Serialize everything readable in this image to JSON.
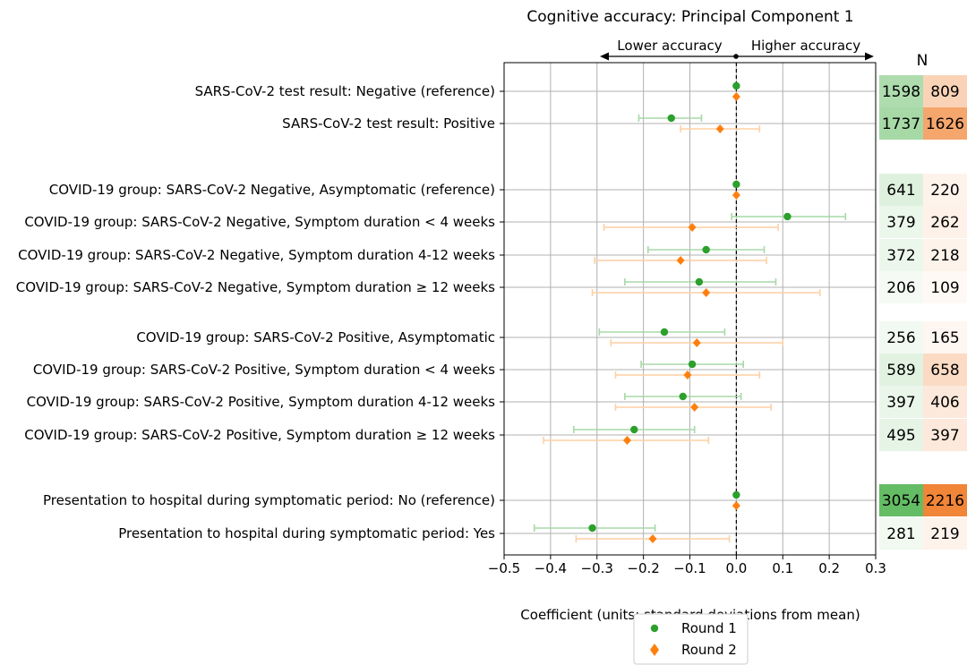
{
  "chart_data": {
    "type": "forest",
    "title": "Cognitive accuracy: Principal Component 1",
    "xlabel": "Coefficient (units: standard deviations from mean)",
    "xlim": [
      -0.5,
      0.3
    ],
    "xticks": [
      -0.5,
      -0.4,
      -0.3,
      -0.2,
      -0.1,
      0.0,
      0.1,
      0.2,
      0.3
    ],
    "xtick_labels": [
      "−0.5",
      "−0.4",
      "−0.3",
      "−0.2",
      "−0.1",
      "0.0",
      "0.1",
      "0.2",
      "0.3"
    ],
    "grid": true,
    "annotations": {
      "lower": "Lower accuracy",
      "higher": "Higher accuracy"
    },
    "n_header": "N",
    "legend": {
      "position": "bottom-center",
      "entries": [
        "Round 1",
        "Round 2"
      ]
    },
    "colors": {
      "round1": "#2ca02c",
      "round1_light": "#a8d8a8",
      "round2": "#ff7f0e",
      "round2_light": "#ffcfa3",
      "heat_green": "#5cb85c",
      "heat_orange": "#f07f2e"
    },
    "n_max": {
      "round1": 3054,
      "round2": 2216
    },
    "rows": [
      {
        "label": "SARS-CoV-2 test result: Negative (reference)",
        "r1": {
          "est": 0.0,
          "lo": 0.0,
          "hi": 0.0
        },
        "r2": {
          "est": 0.0,
          "lo": 0.0,
          "hi": 0.0
        },
        "n1": 1598,
        "n2": 809
      },
      {
        "label": "SARS-CoV-2 test result: Positive",
        "r1": {
          "est": -0.14,
          "lo": -0.21,
          "hi": -0.075
        },
        "r2": {
          "est": -0.035,
          "lo": -0.12,
          "hi": 0.05
        },
        "n1": 1737,
        "n2": 1626
      },
      {
        "label": "COVID-19 group: SARS-CoV-2 Negative, Asymptomatic (reference)",
        "r1": {
          "est": 0.0,
          "lo": 0.0,
          "hi": 0.0
        },
        "r2": {
          "est": 0.0,
          "lo": 0.0,
          "hi": 0.0
        },
        "n1": 641,
        "n2": 220
      },
      {
        "label": "COVID-19 group: SARS-CoV-2 Negative, Symptom duration < 4 weeks",
        "r1": {
          "est": 0.11,
          "lo": -0.01,
          "hi": 0.235
        },
        "r2": {
          "est": -0.095,
          "lo": -0.285,
          "hi": 0.09
        },
        "n1": 379,
        "n2": 262
      },
      {
        "label": "COVID-19 group: SARS-CoV-2 Negative, Symptom duration 4-12 weeks",
        "r1": {
          "est": -0.065,
          "lo": -0.19,
          "hi": 0.06
        },
        "r2": {
          "est": -0.12,
          "lo": -0.305,
          "hi": 0.065
        },
        "n1": 372,
        "n2": 218
      },
      {
        "label": "COVID-19 group: SARS-CoV-2 Negative, Symptom duration ≥ 12 weeks",
        "r1": {
          "est": -0.08,
          "lo": -0.24,
          "hi": 0.085
        },
        "r2": {
          "est": -0.065,
          "lo": -0.31,
          "hi": 0.18
        },
        "n1": 206,
        "n2": 109
      },
      {
        "label": "COVID-19 group: SARS-CoV-2 Positive, Asymptomatic",
        "r1": {
          "est": -0.155,
          "lo": -0.295,
          "hi": -0.025
        },
        "r2": {
          "est": -0.085,
          "lo": -0.27,
          "hi": 0.1
        },
        "n1": 256,
        "n2": 165
      },
      {
        "label": "COVID-19 group: SARS-CoV-2 Positive, Symptom duration < 4 weeks",
        "r1": {
          "est": -0.095,
          "lo": -0.205,
          "hi": 0.015
        },
        "r2": {
          "est": -0.105,
          "lo": -0.26,
          "hi": 0.05
        },
        "n1": 589,
        "n2": 658
      },
      {
        "label": "COVID-19 group: SARS-CoV-2 Positive, Symptom duration 4-12 weeks",
        "r1": {
          "est": -0.115,
          "lo": -0.24,
          "hi": 0.01
        },
        "r2": {
          "est": -0.09,
          "lo": -0.26,
          "hi": 0.075
        },
        "n1": 397,
        "n2": 406
      },
      {
        "label": "COVID-19 group: SARS-CoV-2 Positive, Symptom duration ≥ 12 weeks",
        "r1": {
          "est": -0.22,
          "lo": -0.35,
          "hi": -0.09
        },
        "r2": {
          "est": -0.235,
          "lo": -0.415,
          "hi": -0.06
        },
        "n1": 495,
        "n2": 397
      },
      {
        "label": "Presentation to hospital during symptomatic period: No (reference)",
        "r1": {
          "est": 0.0,
          "lo": 0.0,
          "hi": 0.0
        },
        "r2": {
          "est": 0.0,
          "lo": 0.0,
          "hi": 0.0
        },
        "n1": 3054,
        "n2": 2216
      },
      {
        "label": "Presentation to hospital during symptomatic period: Yes",
        "r1": {
          "est": -0.31,
          "lo": -0.435,
          "hi": -0.175
        },
        "r2": {
          "est": -0.18,
          "lo": -0.345,
          "hi": -0.015
        },
        "n1": 281,
        "n2": 219
      }
    ]
  }
}
